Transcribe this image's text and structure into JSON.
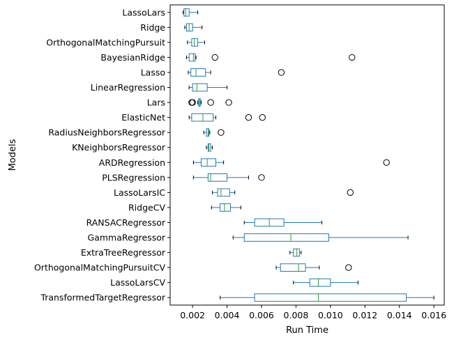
{
  "chart_data": {
    "type": "boxplot",
    "orientation": "horizontal",
    "title": "",
    "xlabel": "Run Time",
    "ylabel": "Models",
    "xlim": [
      0.0007,
      0.0166
    ],
    "xticks": [
      0.002,
      0.004,
      0.006,
      0.008,
      0.01,
      0.012,
      0.014,
      0.016
    ],
    "xtick_labels": [
      "0.002",
      "0.004",
      "0.006",
      "0.008",
      "0.010",
      "0.012",
      "0.014",
      "0.016"
    ],
    "grid": false,
    "legend": "none",
    "colors": {
      "box": "#1f77b4",
      "median": "#2ca02c",
      "whisker": "#000000",
      "flier": "#000000"
    },
    "boxes": [
      {
        "label": "LassoLars",
        "whislo": 0.00145,
        "q1": 0.0015,
        "med": 0.0016,
        "q3": 0.0018,
        "whishi": 0.0023,
        "fliers": []
      },
      {
        "label": "Ridge",
        "whislo": 0.00155,
        "q1": 0.00165,
        "med": 0.0018,
        "q3": 0.002,
        "whishi": 0.00255,
        "fliers": []
      },
      {
        "label": "OrthogonalMatchingPursuit",
        "whislo": 0.0017,
        "q1": 0.00195,
        "med": 0.0021,
        "q3": 0.0023,
        "whishi": 0.0027,
        "fliers": []
      },
      {
        "label": "BayesianRidge",
        "whislo": 0.00165,
        "q1": 0.0018,
        "med": 0.00205,
        "q3": 0.00215,
        "whishi": 0.0022,
        "fliers": [
          0.0033,
          0.01125
        ]
      },
      {
        "label": "Lasso",
        "whislo": 0.00175,
        "q1": 0.0019,
        "med": 0.0022,
        "q3": 0.00275,
        "whishi": 0.00305,
        "fliers": [
          0.00715
        ]
      },
      {
        "label": "LinearRegression",
        "whislo": 0.0018,
        "q1": 0.002,
        "med": 0.00225,
        "q3": 0.00285,
        "whishi": 0.004,
        "fliers": []
      },
      {
        "label": "Lars",
        "whislo": 0.0023,
        "q1": 0.00235,
        "med": 0.0024,
        "q3": 0.00245,
        "whishi": 0.0025,
        "fliers": [
          0.00195,
          0.002,
          0.00305,
          0.0041
        ]
      },
      {
        "label": "ElasticNet",
        "whislo": 0.0018,
        "q1": 0.00195,
        "med": 0.0026,
        "q3": 0.0032,
        "whishi": 0.00335,
        "fliers": [
          0.00525,
          0.00605
        ]
      },
      {
        "label": "RadiusNeighborsRegressor",
        "whislo": 0.00265,
        "q1": 0.0028,
        "med": 0.0029,
        "q3": 0.00295,
        "whishi": 0.003,
        "fliers": [
          0.00365
        ]
      },
      {
        "label": "KNeighborsRegressor",
        "whislo": 0.0028,
        "q1": 0.0029,
        "med": 0.00295,
        "q3": 0.00305,
        "whishi": 0.00315,
        "fliers": []
      },
      {
        "label": "ARDRegression",
        "whislo": 0.00205,
        "q1": 0.0025,
        "med": 0.00285,
        "q3": 0.00335,
        "whishi": 0.0038,
        "fliers": [
          0.01325
        ]
      },
      {
        "label": "PLSRegression",
        "whislo": 0.00205,
        "q1": 0.0029,
        "med": 0.00305,
        "q3": 0.004,
        "whishi": 0.00525,
        "fliers": [
          0.006
        ]
      },
      {
        "label": "LassoLarsIC",
        "whislo": 0.00315,
        "q1": 0.00345,
        "med": 0.00365,
        "q3": 0.00415,
        "whishi": 0.00445,
        "fliers": [
          0.01115
        ]
      },
      {
        "label": "RidgeCV",
        "whislo": 0.0031,
        "q1": 0.0036,
        "med": 0.00385,
        "q3": 0.0042,
        "whishi": 0.0048,
        "fliers": []
      },
      {
        "label": "RANSACRegressor",
        "whislo": 0.005,
        "q1": 0.0056,
        "med": 0.00645,
        "q3": 0.0073,
        "whishi": 0.0095,
        "fliers": []
      },
      {
        "label": "GammaRegressor",
        "whislo": 0.00435,
        "q1": 0.005,
        "med": 0.0077,
        "q3": 0.0099,
        "whishi": 0.0145,
        "fliers": []
      },
      {
        "label": "ExtraTreeRegressor",
        "whislo": 0.00765,
        "q1": 0.00785,
        "med": 0.00805,
        "q3": 0.0082,
        "whishi": 0.0083,
        "fliers": []
      },
      {
        "label": "OrthogonalMatchingPursuitCV",
        "whislo": 0.00685,
        "q1": 0.0071,
        "med": 0.00815,
        "q3": 0.00855,
        "whishi": 0.00935,
        "fliers": [
          0.01105
        ]
      },
      {
        "label": "LassoLarsCV",
        "whislo": 0.00785,
        "q1": 0.0088,
        "med": 0.0093,
        "q3": 0.01,
        "whishi": 0.0116,
        "fliers": []
      },
      {
        "label": "TransformedTargetRegressor",
        "whislo": 0.0036,
        "q1": 0.0056,
        "med": 0.0093,
        "q3": 0.0144,
        "whishi": 0.016,
        "fliers": []
      }
    ]
  }
}
